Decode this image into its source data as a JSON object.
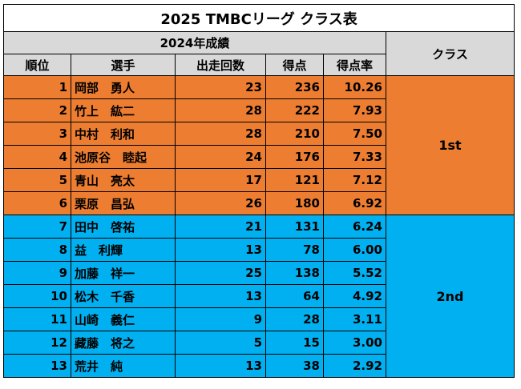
{
  "title": "2025 TMBCリーグ クラス表",
  "group_header": "2024年成績",
  "class_header": "クラス",
  "columns": [
    "順位",
    "選手",
    "出走回数",
    "得点",
    "得点率"
  ],
  "colors": {
    "header_gray": "#d9d9d9",
    "class1_orange": "#ed7d31",
    "class2_blue": "#00b0f0"
  },
  "classes": [
    {
      "label": "1st",
      "rows": [
        {
          "rank": "1",
          "name": "岡部　勇人",
          "starts": "23",
          "points": "236",
          "rate": "10.26"
        },
        {
          "rank": "2",
          "name": "竹上　紘二",
          "starts": "28",
          "points": "222",
          "rate": "7.93"
        },
        {
          "rank": "3",
          "name": "中村　利和",
          "starts": "28",
          "points": "210",
          "rate": "7.50"
        },
        {
          "rank": "4",
          "name": "池原谷　睦起",
          "starts": "24",
          "points": "176",
          "rate": "7.33"
        },
        {
          "rank": "5",
          "name": "青山　亮太",
          "starts": "17",
          "points": "121",
          "rate": "7.12"
        },
        {
          "rank": "6",
          "name": "栗原　昌弘",
          "starts": "26",
          "points": "180",
          "rate": "6.92"
        }
      ]
    },
    {
      "label": "2nd",
      "rows": [
        {
          "rank": "7",
          "name": "田中　啓祐",
          "starts": "21",
          "points": "131",
          "rate": "6.24"
        },
        {
          "rank": "8",
          "name": "益　利輝",
          "starts": "13",
          "points": "78",
          "rate": "6.00"
        },
        {
          "rank": "9",
          "name": "加藤　祥一",
          "starts": "25",
          "points": "138",
          "rate": "5.52"
        },
        {
          "rank": "10",
          "name": "松木　千香",
          "starts": "13",
          "points": "64",
          "rate": "4.92"
        },
        {
          "rank": "11",
          "name": "山崎　義仁",
          "starts": "9",
          "points": "28",
          "rate": "3.11"
        },
        {
          "rank": "12",
          "name": "藏藤　将之",
          "starts": "5",
          "points": "15",
          "rate": "3.00"
        },
        {
          "rank": "13",
          "name": "荒井　純",
          "starts": "13",
          "points": "38",
          "rate": "2.92"
        }
      ]
    }
  ]
}
